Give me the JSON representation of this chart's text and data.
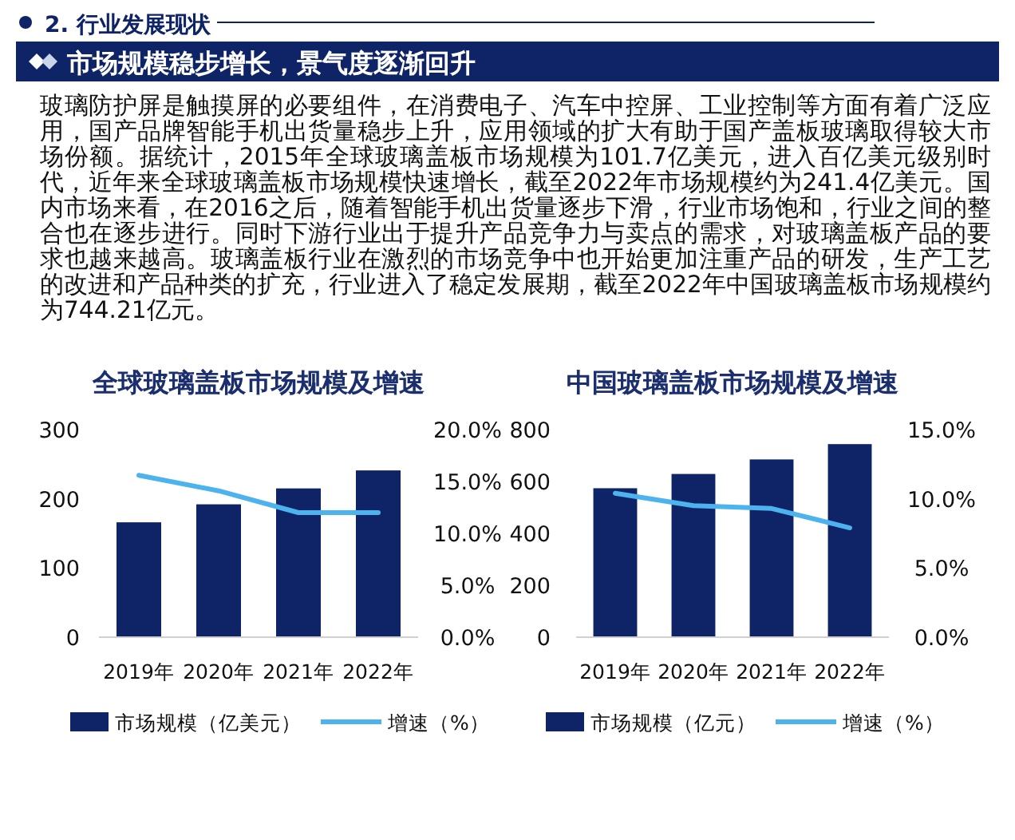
{
  "chart_data": [
    {
      "type": "other",
      "subtitle": "2. 行业发展现状",
      "title": "市场规模稳步增长，景气度逐渐回升",
      "annotations": [
        "玻璃防护屏是触摸屏的必要组件，在消费电子、汽车中控屏、工业控制等方面有着广泛应用，国产品牌智能手机出货量稳步上升，应用领域的扩大有助于国产盖板玻璃取得较大市场份额。据统计，2015年全球玻璃盖板市场规模为101.7亿美元，进入百亿美元级别时代，近年来全球玻璃盖板市场规模快速增长，截至2022年市场规模约为241.4亿美元。国内市场来看，在2016之后，随着智能手机出货量逐步下滑，行业市场饱和，行业之间的整合也在逐步进行。同时下游行业出于提升产品竞争力与卖点的需求，对玻璃盖板产品的要求也越来越高。玻璃盖板行业在激烈的市场竞争中也开始更加注重产品的研发，生产工艺的改进和产品种类的扩充，行业进入了稳定发展期，截至2022年中国玻璃盖板市场规模约为744.21亿元。"
      ]
    },
    {
      "type": "bar",
      "title": "全球玻璃盖板市场规模及增速",
      "categories": [
        "2019年",
        "2020年",
        "2021年",
        "2022年"
      ],
      "series": [
        {
          "name": "市场规模（亿美元）",
          "color": "#0e2466",
          "values": [
            166,
            192,
            215,
            241
          ]
        },
        {
          "name": "增速（%）",
          "color": "#4db3ee",
          "type": "line",
          "axis": "y2",
          "values": [
            15.6,
            14.1,
            12.0,
            12.0
          ]
        }
      ],
      "ylim": [
        0,
        300
      ],
      "yticks": [
        0,
        100,
        200,
        300
      ],
      "y2lim": [
        0,
        20
      ],
      "y2ticks": [
        {
          "value": 0,
          "label": "0.0%"
        },
        {
          "value": 5,
          "label": "5.0%"
        },
        {
          "value": 10,
          "label": "10.0%"
        },
        {
          "value": 15,
          "label": "15.0%"
        },
        {
          "value": 20,
          "label": "20.0%"
        }
      ],
      "legend": "bottom"
    },
    {
      "type": "bar",
      "title": "中国玻璃盖板市场规模及增速",
      "categories": [
        "2019年",
        "2020年",
        "2021年",
        "2022年"
      ],
      "series": [
        {
          "name": "市场规模（亿元）",
          "color": "#0e2466",
          "values": [
            574,
            629,
            685,
            744
          ]
        },
        {
          "name": "增速（%）",
          "color": "#4db3ee",
          "type": "line",
          "axis": "y2",
          "values": [
            10.4,
            9.5,
            9.3,
            7.9
          ]
        }
      ],
      "ylim": [
        0,
        800
      ],
      "yticks": [
        0,
        200,
        400,
        600,
        800
      ],
      "y2lim": [
        0,
        15
      ],
      "y2ticks": [
        {
          "value": 0,
          "label": "0.0%"
        },
        {
          "value": 5,
          "label": "5.0%"
        },
        {
          "value": 10,
          "label": "10.0%"
        },
        {
          "value": 15,
          "label": "15.0%"
        }
      ],
      "legend": "bottom"
    }
  ]
}
